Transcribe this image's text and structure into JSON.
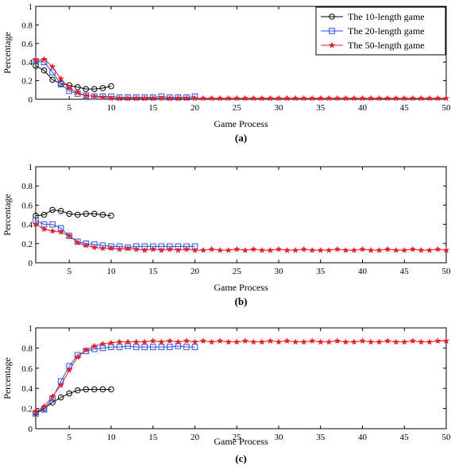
{
  "colors": {
    "s10": "#000000",
    "s20": "#2f52d6",
    "s50": "#e8202a"
  },
  "legend": {
    "position": "top-right",
    "entries": [
      {
        "label": "The 10-length game",
        "color": "#000000",
        "marker": "circle"
      },
      {
        "label": "The 20-length game",
        "color": "#2f52d6",
        "marker": "square"
      },
      {
        "label": "The 50-length game",
        "color": "#e8202a",
        "marker": "star"
      }
    ]
  },
  "chart_data": [
    {
      "type": "line",
      "panel_label": "(a)",
      "xlabel": "Game Process",
      "ylabel": "Percentage",
      "xlim": [
        1,
        50
      ],
      "ylim": [
        0,
        1
      ],
      "xticks": [
        5,
        10,
        15,
        20,
        25,
        30,
        35,
        40,
        45,
        50
      ],
      "yticks": [
        0,
        0.2,
        0.4,
        0.6,
        0.8,
        1
      ],
      "ytick_labels": [
        "0",
        "0.2",
        "0.4",
        "0.6",
        "0.8",
        "1"
      ],
      "grid": false,
      "series": [
        {
          "name": "The 10-length game",
          "color": "#000000",
          "marker": "circle",
          "x": [
            1,
            2,
            3,
            4,
            5,
            6,
            7,
            8,
            9,
            10
          ],
          "y": [
            0.36,
            0.31,
            0.21,
            0.17,
            0.15,
            0.13,
            0.11,
            0.11,
            0.12,
            0.14
          ]
        },
        {
          "name": "The 20-length game",
          "color": "#2f52d6",
          "marker": "square",
          "x": [
            1,
            2,
            3,
            4,
            5,
            6,
            7,
            8,
            9,
            10,
            11,
            12,
            13,
            14,
            15,
            16,
            17,
            18,
            19,
            20
          ],
          "y": [
            0.41,
            0.4,
            0.29,
            0.16,
            0.09,
            0.06,
            0.04,
            0.03,
            0.03,
            0.03,
            0.02,
            0.02,
            0.02,
            0.02,
            0.02,
            0.03,
            0.02,
            0.02,
            0.02,
            0.03
          ]
        },
        {
          "name": "The 50-length game",
          "color": "#e8202a",
          "marker": "star",
          "x": [
            1,
            2,
            3,
            4,
            5,
            6,
            7,
            8,
            9,
            10,
            11,
            12,
            13,
            14,
            15,
            16,
            17,
            18,
            19,
            20,
            21,
            22,
            23,
            24,
            25,
            26,
            27,
            28,
            29,
            30,
            31,
            32,
            33,
            34,
            35,
            36,
            37,
            38,
            39,
            40,
            41,
            42,
            43,
            44,
            45,
            46,
            47,
            48,
            49,
            50
          ],
          "y": [
            0.42,
            0.43,
            0.35,
            0.22,
            0.12,
            0.07,
            0.04,
            0.03,
            0.02,
            0.01,
            0.01,
            0.01,
            0.01,
            0.01,
            0.01,
            0.01,
            0.01,
            0.01,
            0.01,
            0.01,
            0.01,
            0.01,
            0.01,
            0.01,
            0.01,
            0.01,
            0.01,
            0.01,
            0.01,
            0.01,
            0.01,
            0.01,
            0.01,
            0.01,
            0.01,
            0.01,
            0.01,
            0.01,
            0.01,
            0.01,
            0.01,
            0.01,
            0.01,
            0.01,
            0.01,
            0.01,
            0.01,
            0.01,
            0.01,
            0.01
          ]
        }
      ]
    },
    {
      "type": "line",
      "panel_label": "(b)",
      "xlabel": "Game Process",
      "ylabel": "Percentage",
      "xlim": [
        1,
        50
      ],
      "ylim": [
        0,
        1
      ],
      "xticks": [
        5,
        10,
        15,
        20,
        25,
        30,
        35,
        40,
        45,
        50
      ],
      "yticks": [
        0,
        0.2,
        0.4,
        0.6,
        0.8,
        1
      ],
      "ytick_labels": [
        "0",
        "0.2",
        "0.4",
        "0.6",
        "0.8",
        "1"
      ],
      "grid": false,
      "series": [
        {
          "name": "The 10-length game",
          "color": "#000000",
          "marker": "circle",
          "x": [
            1,
            2,
            3,
            4,
            5,
            6,
            7,
            8,
            9,
            10
          ],
          "y": [
            0.49,
            0.5,
            0.55,
            0.54,
            0.51,
            0.5,
            0.51,
            0.51,
            0.5,
            0.49
          ]
        },
        {
          "name": "The 20-length game",
          "color": "#2f52d6",
          "marker": "square",
          "x": [
            1,
            2,
            3,
            4,
            5,
            6,
            7,
            8,
            9,
            10,
            11,
            12,
            13,
            14,
            15,
            16,
            17,
            18,
            19,
            20
          ],
          "y": [
            0.44,
            0.4,
            0.4,
            0.36,
            0.28,
            0.22,
            0.2,
            0.19,
            0.18,
            0.17,
            0.17,
            0.16,
            0.17,
            0.17,
            0.17,
            0.17,
            0.17,
            0.17,
            0.17,
            0.17
          ]
        },
        {
          "name": "The 50-length game",
          "color": "#e8202a",
          "marker": "star",
          "x": [
            1,
            2,
            3,
            4,
            5,
            6,
            7,
            8,
            9,
            10,
            11,
            12,
            13,
            14,
            15,
            16,
            17,
            18,
            19,
            20,
            21,
            22,
            23,
            24,
            25,
            26,
            27,
            28,
            29,
            30,
            31,
            32,
            33,
            34,
            35,
            36,
            37,
            38,
            39,
            40,
            41,
            42,
            43,
            44,
            45,
            46,
            47,
            48,
            49,
            50
          ],
          "y": [
            0.4,
            0.35,
            0.33,
            0.32,
            0.28,
            0.21,
            0.18,
            0.16,
            0.15,
            0.15,
            0.14,
            0.15,
            0.14,
            0.13,
            0.14,
            0.13,
            0.14,
            0.13,
            0.14,
            0.13,
            0.13,
            0.14,
            0.13,
            0.13,
            0.14,
            0.13,
            0.14,
            0.13,
            0.13,
            0.14,
            0.13,
            0.13,
            0.14,
            0.13,
            0.13,
            0.13,
            0.14,
            0.13,
            0.13,
            0.14,
            0.13,
            0.13,
            0.14,
            0.13,
            0.13,
            0.14,
            0.13,
            0.13,
            0.14,
            0.13
          ]
        }
      ]
    },
    {
      "type": "line",
      "panel_label": "(c)",
      "xlabel": "Game Process",
      "ylabel": "Percentage",
      "xlim": [
        1,
        50
      ],
      "ylim": [
        0,
        1
      ],
      "xticks": [
        5,
        10,
        15,
        20,
        25,
        30,
        35,
        40,
        45,
        50
      ],
      "yticks": [
        0,
        0.2,
        0.4,
        0.6,
        0.8,
        1
      ],
      "ytick_labels": [
        "0",
        "0.2",
        "0.4",
        "0.6",
        "0.8",
        "1"
      ],
      "grid": false,
      "series": [
        {
          "name": "The 10-length game",
          "color": "#000000",
          "marker": "circle",
          "x": [
            1,
            2,
            3,
            4,
            5,
            6,
            7,
            8,
            9,
            10
          ],
          "y": [
            0.16,
            0.2,
            0.26,
            0.31,
            0.35,
            0.38,
            0.39,
            0.39,
            0.39,
            0.39
          ]
        },
        {
          "name": "The 20-length game",
          "color": "#2f52d6",
          "marker": "square",
          "x": [
            1,
            2,
            3,
            4,
            5,
            6,
            7,
            8,
            9,
            10,
            11,
            12,
            13,
            14,
            15,
            16,
            17,
            18,
            19,
            20
          ],
          "y": [
            0.15,
            0.19,
            0.3,
            0.47,
            0.62,
            0.73,
            0.77,
            0.79,
            0.8,
            0.81,
            0.81,
            0.82,
            0.81,
            0.81,
            0.81,
            0.81,
            0.81,
            0.82,
            0.81,
            0.81
          ]
        },
        {
          "name": "The 50-length game",
          "color": "#e8202a",
          "marker": "star",
          "x": [
            1,
            2,
            3,
            4,
            5,
            6,
            7,
            8,
            9,
            10,
            11,
            12,
            13,
            14,
            15,
            16,
            17,
            18,
            19,
            20,
            21,
            22,
            23,
            24,
            25,
            26,
            27,
            28,
            29,
            30,
            31,
            32,
            33,
            34,
            35,
            36,
            37,
            38,
            39,
            40,
            41,
            42,
            43,
            44,
            45,
            46,
            47,
            48,
            49,
            50
          ],
          "y": [
            0.17,
            0.22,
            0.32,
            0.43,
            0.58,
            0.71,
            0.78,
            0.82,
            0.84,
            0.85,
            0.86,
            0.86,
            0.86,
            0.86,
            0.87,
            0.86,
            0.87,
            0.86,
            0.87,
            0.86,
            0.87,
            0.86,
            0.87,
            0.86,
            0.86,
            0.87,
            0.86,
            0.86,
            0.87,
            0.86,
            0.87,
            0.86,
            0.86,
            0.87,
            0.86,
            0.86,
            0.87,
            0.86,
            0.86,
            0.87,
            0.86,
            0.86,
            0.87,
            0.86,
            0.86,
            0.87,
            0.86,
            0.86,
            0.87,
            0.87
          ]
        }
      ]
    }
  ]
}
